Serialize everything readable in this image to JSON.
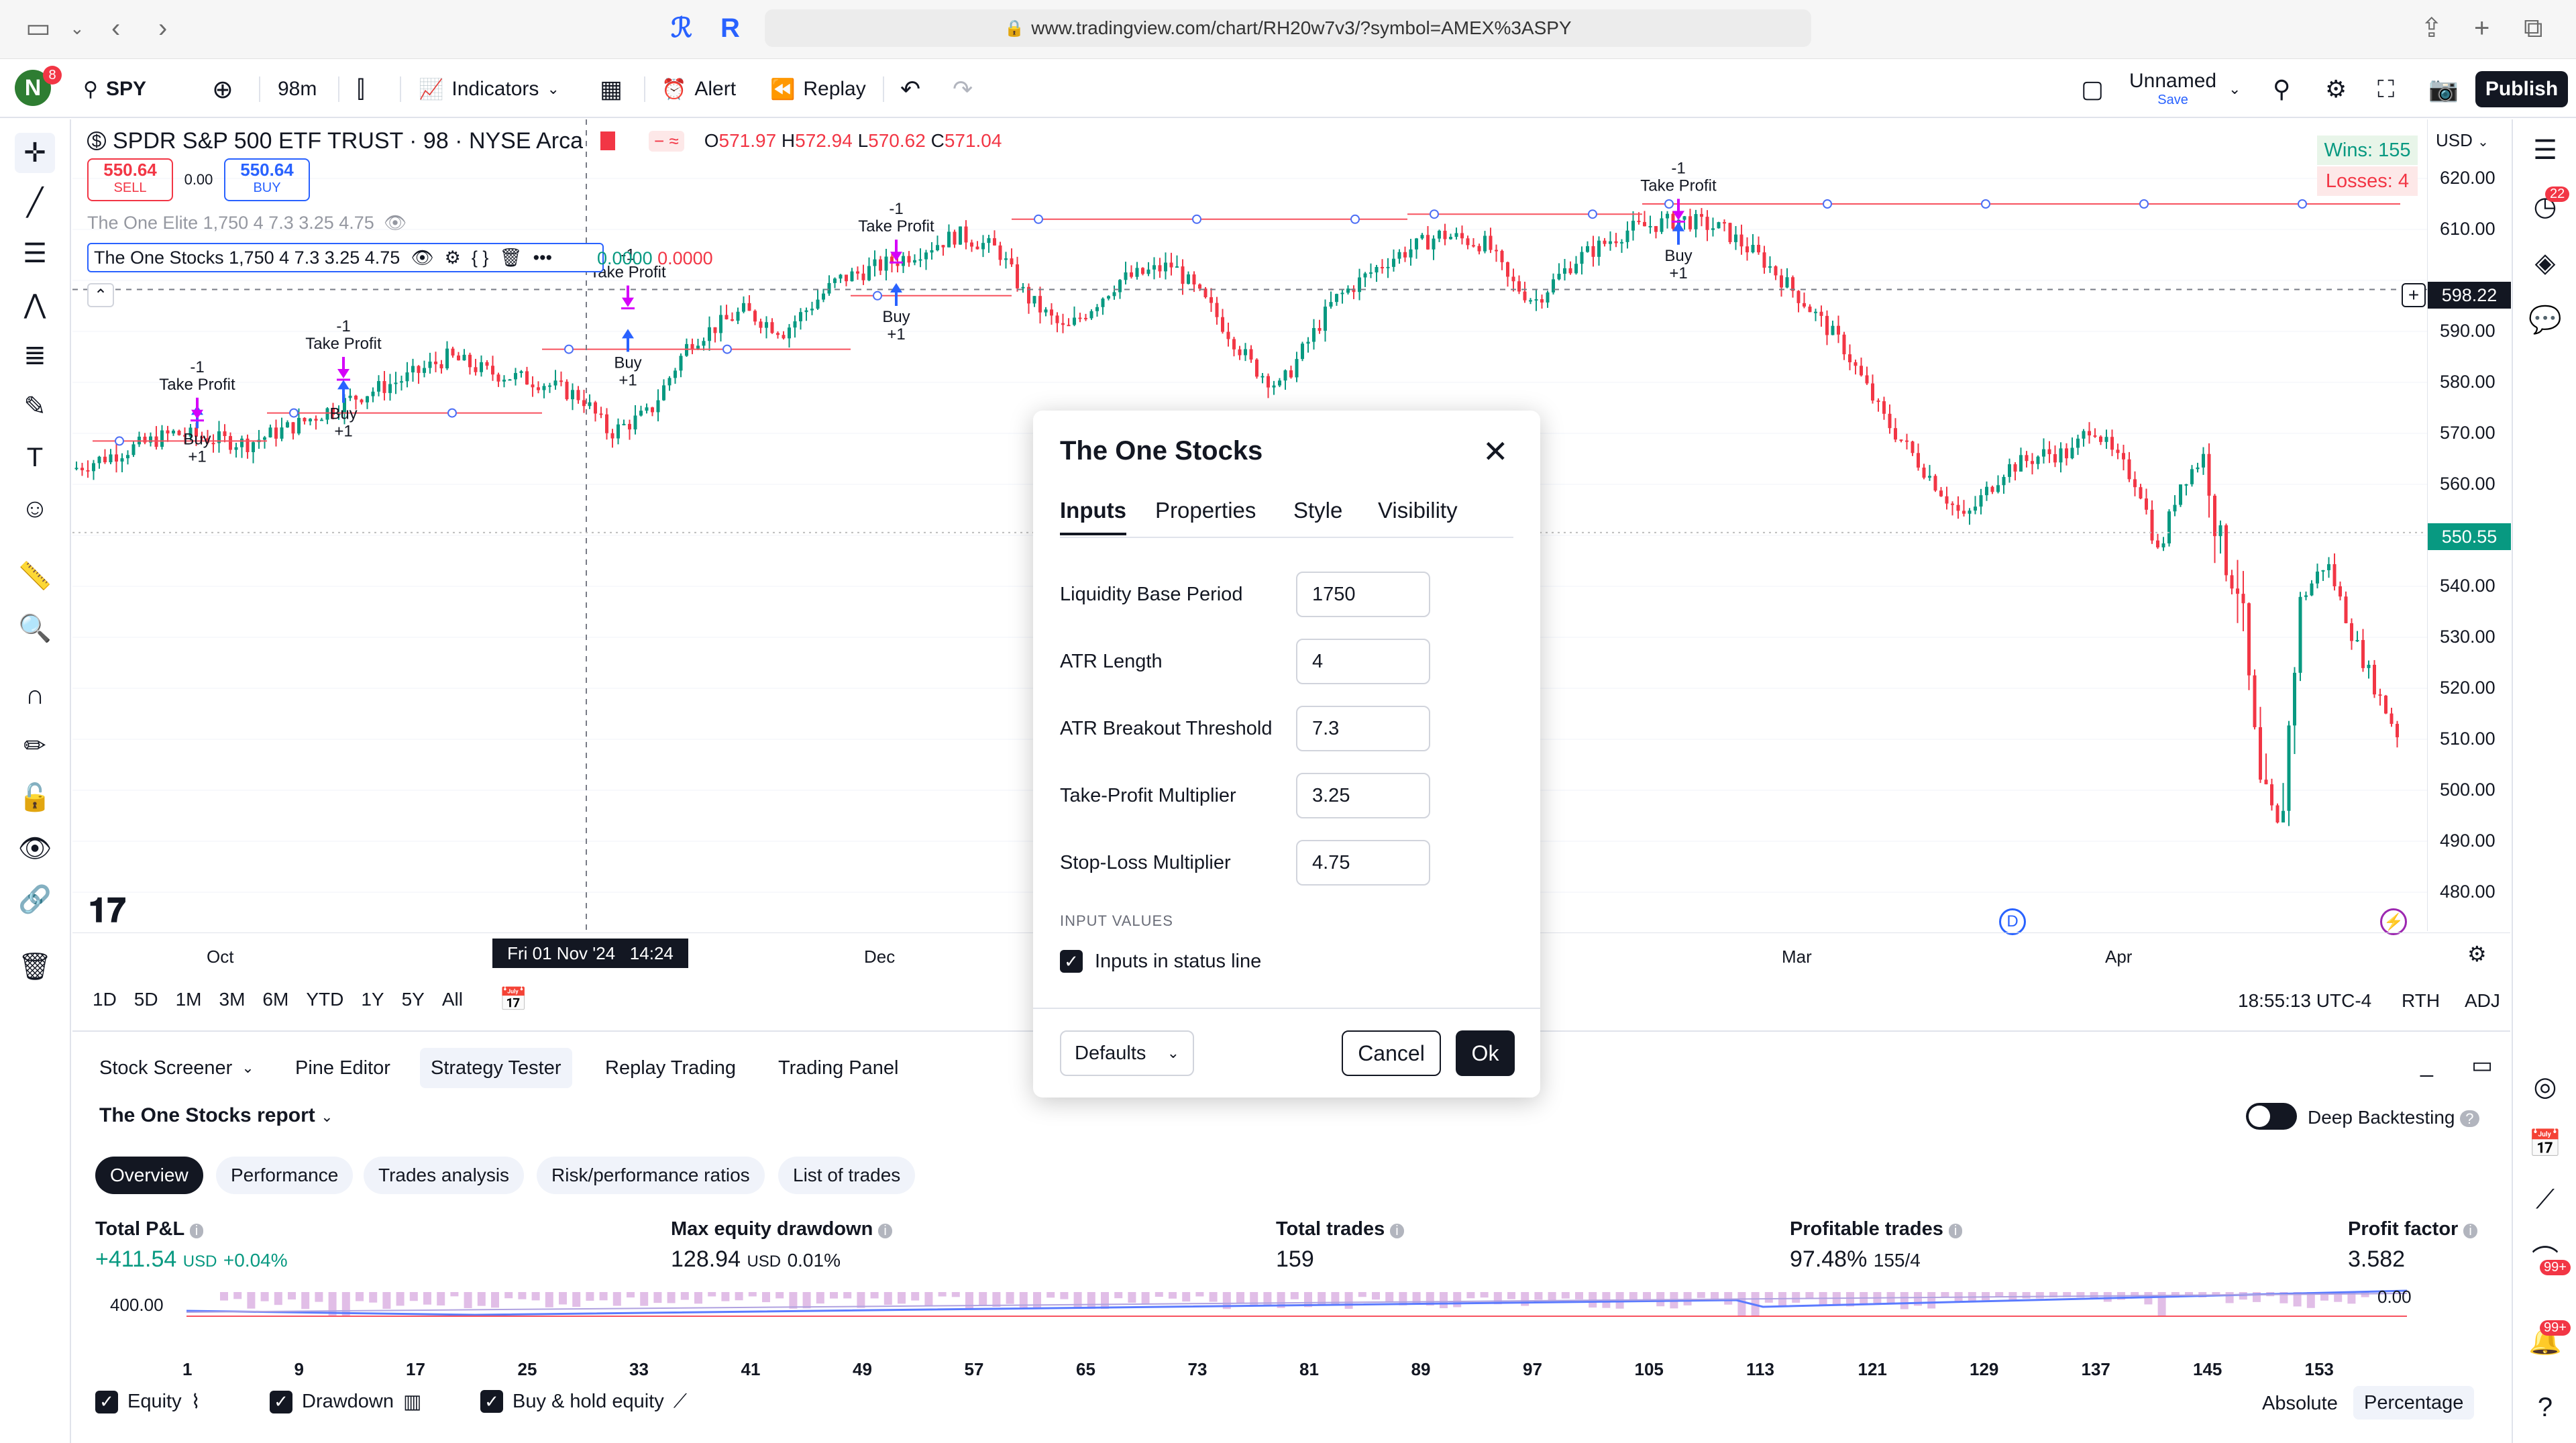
{
  "browser": {
    "url": "www.tradingview.com/chart/RH20w7v3/?symbol=AMEX%3ASPY"
  },
  "header": {
    "symbol": "SPY",
    "interval": "98m",
    "indicators_label": "Indicators",
    "alert_label": "Alert",
    "replay_label": "Replay",
    "layout_name": "Unnamed",
    "layout_save": "Save",
    "publish_label": "Publish",
    "avatar_letter": "N",
    "notif_count": "8"
  },
  "legend": {
    "title": "SPDR S&P 500 ETF TRUST · 98 · NYSE Arca",
    "o_label": "O",
    "o": "571.97",
    "h_label": "H",
    "h": "572.94",
    "l_label": "L",
    "l": "570.62",
    "c_label": "C",
    "c": "571.04",
    "sell_price": "550.64",
    "sell_label": "SELL",
    "spread": "0.00",
    "buy_price": "550.64",
    "buy_label": "BUY",
    "ind1": "The One Elite 1,750 4 7.3 3.25 4.75",
    "ind2": "The One Stocks 1,750 4 7.3 3.25 4.75",
    "ind2_val1": "0.0000",
    "ind2_val2": "0.0000"
  },
  "stats_box": {
    "wins": "Wins: 155",
    "losses": "Losses: 4"
  },
  "price_axis": {
    "currency": "USD",
    "labels": [
      "620.00",
      "610.00",
      "590.00",
      "580.00",
      "570.00",
      "560.00",
      "540.00",
      "530.00",
      "520.00",
      "510.00",
      "500.00",
      "490.00",
      "480.00"
    ],
    "crosshair_price": "598.22",
    "last_price": "550.55"
  },
  "time_axis": {
    "labels": [
      "Oct",
      "Dec",
      "Mar",
      "Apr"
    ],
    "crosshair_time": "Fri 01 Nov '24   14:24"
  },
  "trade_labels": {
    "tp": "Take Profit",
    "minus1": "-1",
    "buy": "Buy",
    "plus1": "+1"
  },
  "range_bar": {
    "ranges": [
      "1D",
      "5D",
      "1M",
      "3M",
      "6M",
      "YTD",
      "1Y",
      "5Y",
      "All"
    ],
    "clock": "18:55:13 UTC-4",
    "rth": "RTH",
    "adj": "ADJ"
  },
  "dialog": {
    "title": "The One Stocks",
    "tabs": [
      "Inputs",
      "Properties",
      "Style",
      "Visibility"
    ],
    "fields": [
      {
        "label": "Liquidity Base Period",
        "value": "1750"
      },
      {
        "label": "ATR Length",
        "value": "4"
      },
      {
        "label": "ATR Breakout Threshold",
        "value": "7.3"
      },
      {
        "label": "Take-Profit Multiplier",
        "value": "3.25"
      },
      {
        "label": "Stop-Loss Multiplier",
        "value": "4.75"
      }
    ],
    "section_label": "INPUT VALUES",
    "checkbox_label": "Inputs in status line",
    "defaults_label": "Defaults",
    "cancel_label": "Cancel",
    "ok_label": "Ok"
  },
  "bottom": {
    "tabs": [
      "Stock Screener",
      "Pine Editor",
      "Strategy Tester",
      "Replay Trading",
      "Trading Panel"
    ],
    "report_title": "The One Stocks report",
    "deep_backtesting": "Deep Backtesting",
    "subtabs": [
      "Overview",
      "Performance",
      "Trades analysis",
      "Risk/performance ratios",
      "List of trades"
    ],
    "metrics": [
      {
        "label": "Total P&L",
        "value": "+411.54",
        "unit": "USD",
        "extra": "+0.04%"
      },
      {
        "label": "Max equity drawdown",
        "value": "128.94",
        "unit": "USD",
        "extra": "0.01%"
      },
      {
        "label": "Total trades",
        "value": "159",
        "unit": "",
        "extra": ""
      },
      {
        "label": "Profitable trades",
        "value": "97.48%",
        "unit": "",
        "extra": "155/4"
      },
      {
        "label": "Profit factor",
        "value": "3.582",
        "unit": "",
        "extra": ""
      }
    ],
    "y_left": "400.00",
    "y_right": "0.00",
    "x_ticks": [
      "1",
      "9",
      "17",
      "25",
      "33",
      "41",
      "49",
      "57",
      "65",
      "73",
      "81",
      "89",
      "97",
      "105",
      "113",
      "121",
      "129",
      "137",
      "145",
      "153"
    ],
    "legend_items": [
      "Equity",
      "Drawdown",
      "Buy & hold equity"
    ],
    "absolute_label": "Absolute",
    "percentage_label": "Percentage"
  },
  "right_badges": {
    "b1": "22",
    "b2": "99+",
    "b3": "99+"
  },
  "colors": {
    "accent": "#2962ff",
    "up": "#089981",
    "down": "#f23645",
    "tp_line": "#f7525f",
    "marker": "#d500f9"
  }
}
